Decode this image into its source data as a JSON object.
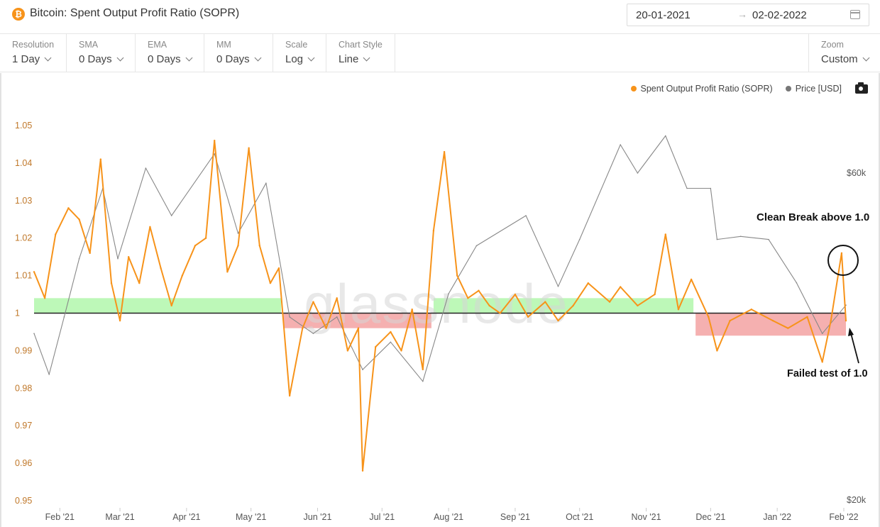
{
  "header": {
    "title": "Bitcoin: Spent Output Profit Ratio (SOPR)",
    "icon": "bitcoin-icon",
    "date_from": "20-01-2021",
    "date_to": "02-02-2022"
  },
  "controls": [
    {
      "label": "Resolution",
      "value": "1 Day"
    },
    {
      "label": "SMA",
      "value": "0 Days"
    },
    {
      "label": "EMA",
      "value": "0 Days"
    },
    {
      "label": "MM",
      "value": "0 Days"
    },
    {
      "label": "Scale",
      "value": "Log"
    },
    {
      "label": "Chart Style",
      "value": "Line"
    }
  ],
  "zoom": {
    "label": "Zoom",
    "value": "Custom"
  },
  "legend": [
    {
      "label": "Spent Output Profit Ratio (SOPR)",
      "color": "#f7931a"
    },
    {
      "label": "Price [USD]",
      "color": "#777777"
    }
  ],
  "annotations": {
    "top": "Clean Break above 1.0",
    "bottom": "Failed test of 1.0"
  },
  "watermark": "glassnode",
  "colors": {
    "sopr": "#f7931a",
    "price": "#888888",
    "green_zone": "#b6f7b0",
    "red_zone": "#f4a7a7",
    "axis_text": "#c0782a"
  },
  "chart_data": {
    "type": "line",
    "xlabel": "",
    "ylabel": "",
    "x_range": [
      "2021-01-20",
      "2022-02-02"
    ],
    "x_ticks": [
      "Feb '21",
      "Mar '21",
      "Apr '21",
      "May '21",
      "Jun '21",
      "Jul '21",
      "Aug '21",
      "Sep '21",
      "Oct '21",
      "Nov '21",
      "Dec '21",
      "Jan '22",
      "Feb '22"
    ],
    "y_left": {
      "ticks": [
        "1.05",
        "1.04",
        "1.03",
        "1.02",
        "1.01",
        "1",
        "0.99",
        "0.98",
        "0.97",
        "0.96",
        "0.95"
      ],
      "range": [
        0.95,
        1.05
      ]
    },
    "y_right": {
      "ticks": [
        "$60k",
        "$20k"
      ],
      "scale": "log"
    },
    "reference_line": 1.0,
    "zones": [
      {
        "color": "green",
        "from": "2021-01-20",
        "to": "2021-05-15",
        "y_range": [
          1.0,
          1.004
        ]
      },
      {
        "color": "red",
        "from": "2021-05-16",
        "to": "2021-07-24",
        "y_range": [
          0.996,
          1.0
        ]
      },
      {
        "color": "green",
        "from": "2021-07-25",
        "to": "2021-11-23",
        "y_range": [
          1.0,
          1.004
        ]
      },
      {
        "color": "red",
        "from": "2021-11-24",
        "to": "2022-02-02",
        "y_range": [
          0.994,
          1.0
        ]
      }
    ],
    "series": [
      {
        "name": "Spent Output Profit Ratio (SOPR)",
        "axis": "left",
        "points": [
          [
            "2021-01-20",
            1.011
          ],
          [
            "2021-01-25",
            1.004
          ],
          [
            "2021-01-30",
            1.021
          ],
          [
            "2021-02-05",
            1.028
          ],
          [
            "2021-02-10",
            1.025
          ],
          [
            "2021-02-15",
            1.016
          ],
          [
            "2021-02-20",
            1.041
          ],
          [
            "2021-02-25",
            1.008
          ],
          [
            "2021-03-01",
            0.998
          ],
          [
            "2021-03-05",
            1.015
          ],
          [
            "2021-03-10",
            1.008
          ],
          [
            "2021-03-15",
            1.023
          ],
          [
            "2021-03-20",
            1.012
          ],
          [
            "2021-03-25",
            1.002
          ],
          [
            "2021-03-30",
            1.01
          ],
          [
            "2021-04-05",
            1.018
          ],
          [
            "2021-04-10",
            1.02
          ],
          [
            "2021-04-14",
            1.046
          ],
          [
            "2021-04-20",
            1.011
          ],
          [
            "2021-04-25",
            1.018
          ],
          [
            "2021-04-30",
            1.044
          ],
          [
            "2021-05-05",
            1.018
          ],
          [
            "2021-05-10",
            1.008
          ],
          [
            "2021-05-14",
            1.012
          ],
          [
            "2021-05-19",
            0.978
          ],
          [
            "2021-05-25",
            0.996
          ],
          [
            "2021-05-30",
            1.003
          ],
          [
            "2021-06-05",
            0.996
          ],
          [
            "2021-06-10",
            1.004
          ],
          [
            "2021-06-15",
            0.99
          ],
          [
            "2021-06-20",
            0.996
          ],
          [
            "2021-06-22",
            0.958
          ],
          [
            "2021-06-28",
            0.991
          ],
          [
            "2021-07-05",
            0.995
          ],
          [
            "2021-07-10",
            0.99
          ],
          [
            "2021-07-15",
            1.001
          ],
          [
            "2021-07-20",
            0.985
          ],
          [
            "2021-07-25",
            1.022
          ],
          [
            "2021-07-30",
            1.043
          ],
          [
            "2021-08-05",
            1.01
          ],
          [
            "2021-08-10",
            1.004
          ],
          [
            "2021-08-15",
            1.006
          ],
          [
            "2021-08-20",
            1.002
          ],
          [
            "2021-08-25",
            1.0
          ],
          [
            "2021-09-01",
            1.005
          ],
          [
            "2021-09-07",
            0.999
          ],
          [
            "2021-09-15",
            1.003
          ],
          [
            "2021-09-21",
            0.998
          ],
          [
            "2021-09-28",
            1.002
          ],
          [
            "2021-10-05",
            1.008
          ],
          [
            "2021-10-15",
            1.003
          ],
          [
            "2021-10-20",
            1.007
          ],
          [
            "2021-10-28",
            1.002
          ],
          [
            "2021-11-05",
            1.005
          ],
          [
            "2021-11-10",
            1.021
          ],
          [
            "2021-11-16",
            1.001
          ],
          [
            "2021-11-22",
            1.009
          ],
          [
            "2021-11-30",
            0.999
          ],
          [
            "2021-12-04",
            0.99
          ],
          [
            "2021-12-10",
            0.998
          ],
          [
            "2021-12-20",
            1.001
          ],
          [
            "2021-12-30",
            0.998
          ],
          [
            "2022-01-06",
            0.996
          ],
          [
            "2022-01-15",
            0.999
          ],
          [
            "2022-01-22",
            0.987
          ],
          [
            "2022-01-26",
            0.998
          ],
          [
            "2022-01-31",
            1.016
          ],
          [
            "2022-02-02",
            0.998
          ]
        ]
      },
      {
        "name": "Price [USD]",
        "axis": "right",
        "points": [
          [
            "2021-01-20",
            35000
          ],
          [
            "2021-01-27",
            30500
          ],
          [
            "2021-02-03",
            37000
          ],
          [
            "2021-02-10",
            45000
          ],
          [
            "2021-02-21",
            57000
          ],
          [
            "2021-02-28",
            45000
          ],
          [
            "2021-03-13",
            61000
          ],
          [
            "2021-03-25",
            52000
          ],
          [
            "2021-04-14",
            64000
          ],
          [
            "2021-04-25",
            49000
          ],
          [
            "2021-05-08",
            58000
          ],
          [
            "2021-05-19",
            37000
          ],
          [
            "2021-05-30",
            35000
          ],
          [
            "2021-06-10",
            37000
          ],
          [
            "2021-06-22",
            31000
          ],
          [
            "2021-07-05",
            34000
          ],
          [
            "2021-07-20",
            29800
          ],
          [
            "2021-08-01",
            40000
          ],
          [
            "2021-08-14",
            47000
          ],
          [
            "2021-09-06",
            52000
          ],
          [
            "2021-09-21",
            41000
          ],
          [
            "2021-10-01",
            48000
          ],
          [
            "2021-10-20",
            66000
          ],
          [
            "2021-10-28",
            60000
          ],
          [
            "2021-11-10",
            68000
          ],
          [
            "2021-11-20",
            57000
          ],
          [
            "2021-12-01",
            57000
          ],
          [
            "2021-12-04",
            48000
          ],
          [
            "2021-12-15",
            48500
          ],
          [
            "2021-12-28",
            48000
          ],
          [
            "2022-01-10",
            41500
          ],
          [
            "2022-01-22",
            35000
          ],
          [
            "2022-02-02",
            38500
          ]
        ]
      }
    ]
  }
}
